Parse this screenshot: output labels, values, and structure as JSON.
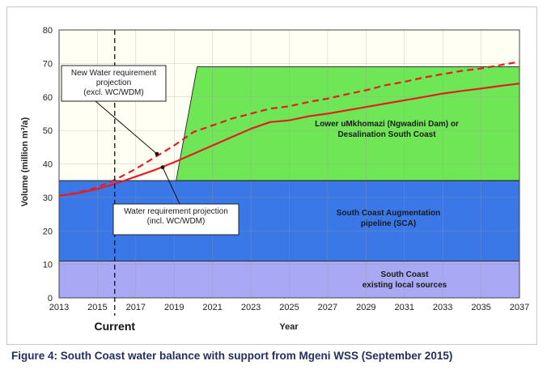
{
  "caption": "Figure 4: South Coast water balance with support from Mgeni WSS (September 2015)",
  "chart_data": {
    "type": "area",
    "title": "",
    "xlabel": "Year",
    "ylabel": "Volume (million m³/a)",
    "xlim": [
      2013,
      2037
    ],
    "ylim": [
      0,
      80
    ],
    "x_ticks": [
      "2013",
      "2015",
      "2017",
      "2019",
      "2021",
      "2023",
      "2025",
      "2027",
      "2029",
      "2031",
      "2033",
      "2035",
      "2037"
    ],
    "y_ticks": [
      "0",
      "10",
      "20",
      "30",
      "40",
      "50",
      "60",
      "70",
      "80"
    ],
    "grid": true,
    "current_year": 2015.9,
    "current_label": "Current",
    "supply_regions": [
      {
        "name": "South Coast existing local sources",
        "label_lines": [
          "South Coast",
          "existing local sources"
        ],
        "color": "#a8a8f4",
        "points": [
          [
            2013,
            0
          ],
          [
            2037,
            0
          ],
          [
            2037,
            11
          ],
          [
            2013,
            11
          ]
        ]
      },
      {
        "name": "South Coast Augmentation pipeline (SCA)",
        "label_lines": [
          "South Coast  Augmentation",
          "pipeline (SCA)"
        ],
        "color": "#3a78e8",
        "points": [
          [
            2013,
            11
          ],
          [
            2037,
            11
          ],
          [
            2037,
            35
          ],
          [
            2013,
            35
          ]
        ]
      },
      {
        "name": "Lower uMkhomazi (Ngwadini Dam) or Desalination South Coast",
        "label_lines": [
          "Lower uMkhomazi (Ngwadini Dam) or",
          "Desalination South Coast"
        ],
        "color": "#6ee656",
        "points": [
          [
            2019.1,
            35
          ],
          [
            2037,
            35
          ],
          [
            2037,
            69
          ],
          [
            2020.2,
            69
          ]
        ]
      }
    ],
    "series": [
      {
        "name": "Water requirement projection (incl. WC/WDM)",
        "style": "solid",
        "color": "#e02020",
        "x": [
          2013,
          2014,
          2015,
          2016,
          2017,
          2018,
          2019,
          2020,
          2021,
          2022,
          2023,
          2024,
          2025,
          2026,
          2027,
          2028,
          2029,
          2030,
          2031,
          2032,
          2033,
          2034,
          2035,
          2036,
          2037
        ],
        "y": [
          30.5,
          31.3,
          32.5,
          34.2,
          36.2,
          38.2,
          40.5,
          43.0,
          45.5,
          48.0,
          50.5,
          52.5,
          53.0,
          54.2,
          55.0,
          56.0,
          57.0,
          58.0,
          59.0,
          60.0,
          61.0,
          61.8,
          62.5,
          63.3,
          64.0
        ]
      },
      {
        "name": "New Water requirement projection (excl. WC/WDM)",
        "style": "dashed",
        "color": "#e02020",
        "x": [
          2013,
          2014,
          2015,
          2016,
          2017,
          2018,
          2019,
          2020,
          2021,
          2022,
          2023,
          2024,
          2025,
          2026,
          2027,
          2028,
          2029,
          2030,
          2031,
          2032,
          2033,
          2034,
          2035,
          2036,
          2037
        ],
        "y": [
          30.5,
          31.5,
          33.0,
          35.5,
          38.5,
          42.0,
          45.5,
          49.5,
          51.5,
          53.5,
          55.0,
          56.5,
          57.2,
          58.5,
          59.5,
          60.8,
          62.0,
          63.5,
          64.5,
          65.8,
          66.8,
          67.8,
          68.5,
          69.5,
          70.5
        ]
      }
    ],
    "annotations": [
      {
        "lines": [
          "New Water requirement",
          "projection",
          "(excl. WC/WDM)"
        ],
        "target": [
          2018.1,
          43
        ]
      },
      {
        "lines": [
          "Water requirement projection",
          "(incl. WC/WDM)"
        ],
        "target": [
          2018.4,
          39
        ]
      }
    ]
  }
}
